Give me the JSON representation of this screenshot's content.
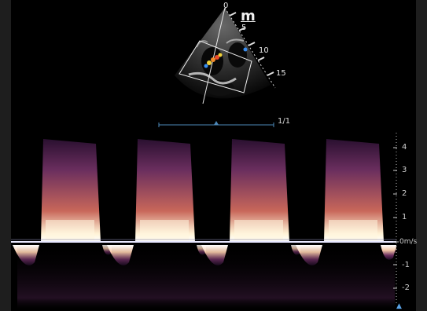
{
  "bmode": {
    "depth_marks": [
      "0",
      "5",
      "10",
      "15"
    ],
    "probe_marker": "m",
    "page_indicator": "1/1"
  },
  "doppler": {
    "velocity_ticks": [
      "4",
      "3",
      "2",
      "1",
      "0m/s",
      "-1",
      "-2"
    ],
    "waveform_count": 4
  },
  "colors": {
    "background": "#000000",
    "spectrum_hot": "#fff3d6",
    "spectrum_mid": "#f0a36a",
    "spectrum_dark": "#6a2e5e",
    "baseline": "#e8e8ff",
    "scale_marker": "#5aa3e6"
  }
}
